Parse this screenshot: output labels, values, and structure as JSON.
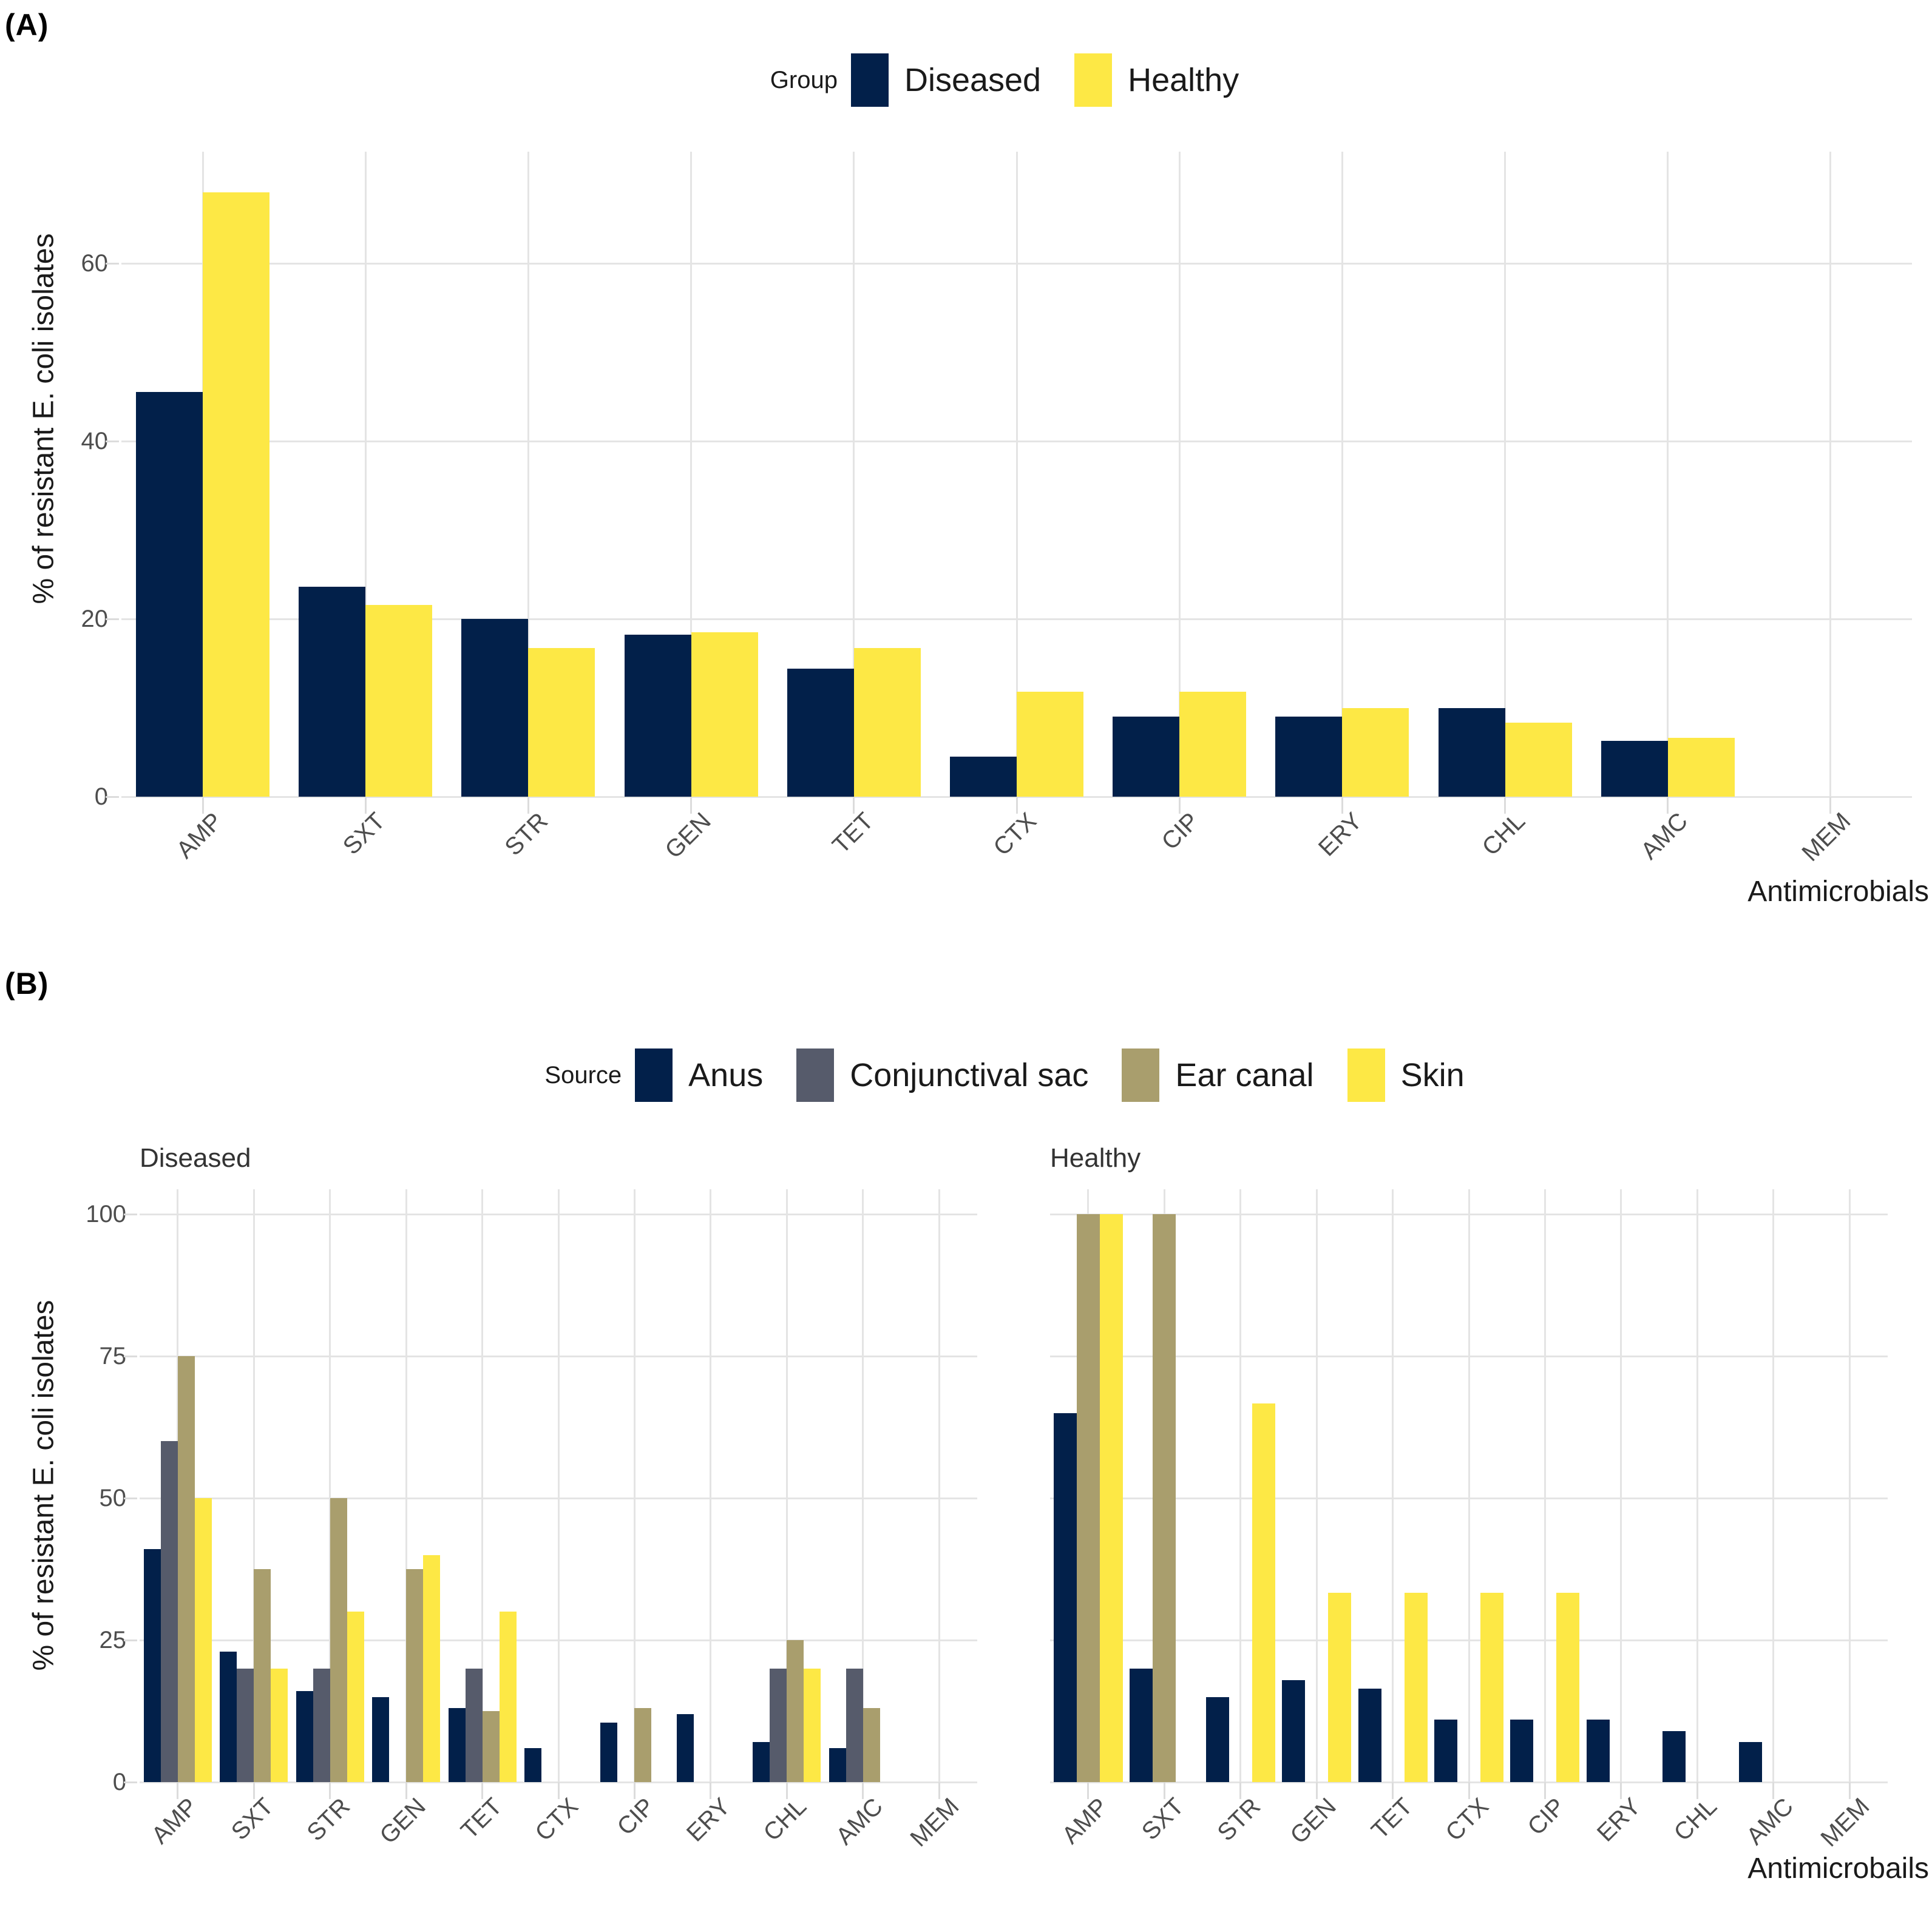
{
  "figure": {
    "background": "#ffffff",
    "gridline_color": "#e4e4e4",
    "tick_text_color": "#4d4d4d",
    "title_text_color": "#1a1a1a"
  },
  "chart_data": [
    {
      "id": "A",
      "type": "bar",
      "panel_tag": "(A)",
      "legend_title": "Group",
      "legend_position": "top-center",
      "xlabel": "Antimicrobials",
      "ylabel": "% of resistant E. coli isolates",
      "categories": [
        "AMP",
        "SXT",
        "STR",
        "GEN",
        "TET",
        "CTX",
        "CIP",
        "ERY",
        "CHL",
        "AMC",
        "MEM"
      ],
      "y_ticks": [
        0,
        20,
        40,
        60
      ],
      "ylim": [
        0,
        72
      ],
      "grid": true,
      "series": [
        {
          "name": "Diseased",
          "color": "#02204A",
          "values": [
            45.5,
            23.6,
            20,
            18.2,
            14.4,
            4.5,
            9,
            9,
            10,
            6.3,
            0
          ]
        },
        {
          "name": "Healthy",
          "color": "#FDE845",
          "values": [
            68,
            21.6,
            16.7,
            18.5,
            16.7,
            11.8,
            11.8,
            10,
            8.3,
            6.6,
            0
          ]
        }
      ]
    },
    {
      "id": "B",
      "type": "bar",
      "panel_tag": "(B)",
      "legend_title": "Source",
      "legend_position": "top-center",
      "xlabel": "Antimicrobails",
      "ylabel": "% of resistant E. coli isolates",
      "categories": [
        "AMP",
        "SXT",
        "STR",
        "GEN",
        "TET",
        "CTX",
        "CIP",
        "ERY",
        "CHL",
        "AMC",
        "MEM"
      ],
      "y_ticks": [
        0,
        25,
        50,
        75,
        100
      ],
      "ylim": [
        0,
        104
      ],
      "grid": true,
      "legend_series": [
        {
          "name": "Anus",
          "color": "#02204A"
        },
        {
          "name": "Conjunctival sac",
          "color": "#565B6B"
        },
        {
          "name": "Ear canal",
          "color": "#A99E6D"
        },
        {
          "name": "Skin",
          "color": "#FDE845"
        }
      ],
      "facets": [
        {
          "title": "Diseased",
          "series": [
            {
              "name": "Anus",
              "color": "#02204A",
              "values": [
                41,
                23,
                16,
                15,
                13,
                6,
                10.5,
                12,
                7,
                6,
                0
              ]
            },
            {
              "name": "Conjunctival sac",
              "color": "#565B6B",
              "values": [
                60,
                20,
                20,
                0,
                20,
                0,
                0,
                0,
                20,
                20,
                0
              ]
            },
            {
              "name": "Ear canal",
              "color": "#A99E6D",
              "values": [
                75,
                37.5,
                50,
                37.5,
                12.5,
                0,
                13,
                0,
                25,
                13,
                0
              ]
            },
            {
              "name": "Skin",
              "color": "#FDE845",
              "values": [
                50,
                20,
                30,
                40,
                30,
                0,
                0,
                0,
                20,
                0,
                0
              ]
            }
          ]
        },
        {
          "title": "Healthy",
          "series": [
            {
              "name": "Anus",
              "color": "#02204A",
              "values": [
                65,
                20,
                15,
                18,
                16.5,
                11,
                11,
                11,
                9,
                7,
                0
              ]
            },
            {
              "name": "Ear canal",
              "color": "#A99E6D",
              "values": [
                100,
                100,
                0,
                0,
                0,
                0,
                0,
                0,
                0,
                0,
                0
              ]
            },
            {
              "name": "Skin",
              "color": "#FDE845",
              "values": [
                100,
                0,
                66.7,
                33.3,
                33.3,
                33.3,
                33.3,
                0,
                0,
                0,
                0
              ]
            }
          ]
        }
      ]
    }
  ]
}
